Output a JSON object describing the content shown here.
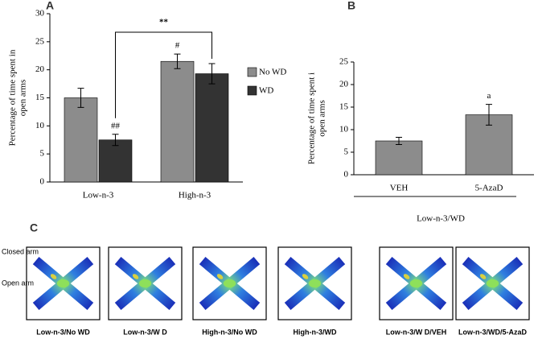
{
  "chart_data": [
    {
      "type": "bar",
      "panel": "A",
      "ylabel": [
        "Percentage of time spent in",
        "open arms"
      ],
      "categories": [
        "Low-n-3",
        "High-n-3"
      ],
      "series": [
        {
          "name": "No WD",
          "color": "#8c8c8c",
          "values": [
            15,
            21.5
          ],
          "errors": [
            1.7,
            1.3
          ],
          "annotations": [
            null,
            "#"
          ]
        },
        {
          "name": "WD",
          "color": "#333333",
          "values": [
            7.5,
            19.3
          ],
          "errors": [
            1,
            1.8
          ],
          "annotations": [
            "##",
            null
          ]
        }
      ],
      "comparison": "**",
      "ylim": [
        0,
        30
      ],
      "yticks": [
        0,
        5,
        10,
        15,
        20,
        25,
        30
      ],
      "legend": "right"
    },
    {
      "type": "bar",
      "panel": "B",
      "ylabel": [
        "Percentage of time spent i",
        "open arms"
      ],
      "xlabel": "Low-n-3/WD",
      "categories": [
        "VEH",
        "5-AzaD"
      ],
      "series": [
        {
          "color": "#8c8c8c",
          "values": [
            7.5,
            13.3
          ],
          "errors": [
            0.8,
            2.3
          ],
          "annotations": [
            null,
            "a"
          ]
        }
      ],
      "ylim": [
        0,
        25
      ],
      "yticks": [
        0,
        5,
        10,
        15,
        20,
        25
      ]
    }
  ],
  "panel_c": {
    "label": "C",
    "closed_arm": "Closed arm",
    "open_arm": "Open arm",
    "images": [
      "Low-n-3/No WD",
      "Low-n-3/W D",
      "High-n-3/No WD",
      "High-n-3/WD",
      "Low-n-3/W D/VEH",
      "Low-n-3/WD/5-AzaD"
    ]
  }
}
